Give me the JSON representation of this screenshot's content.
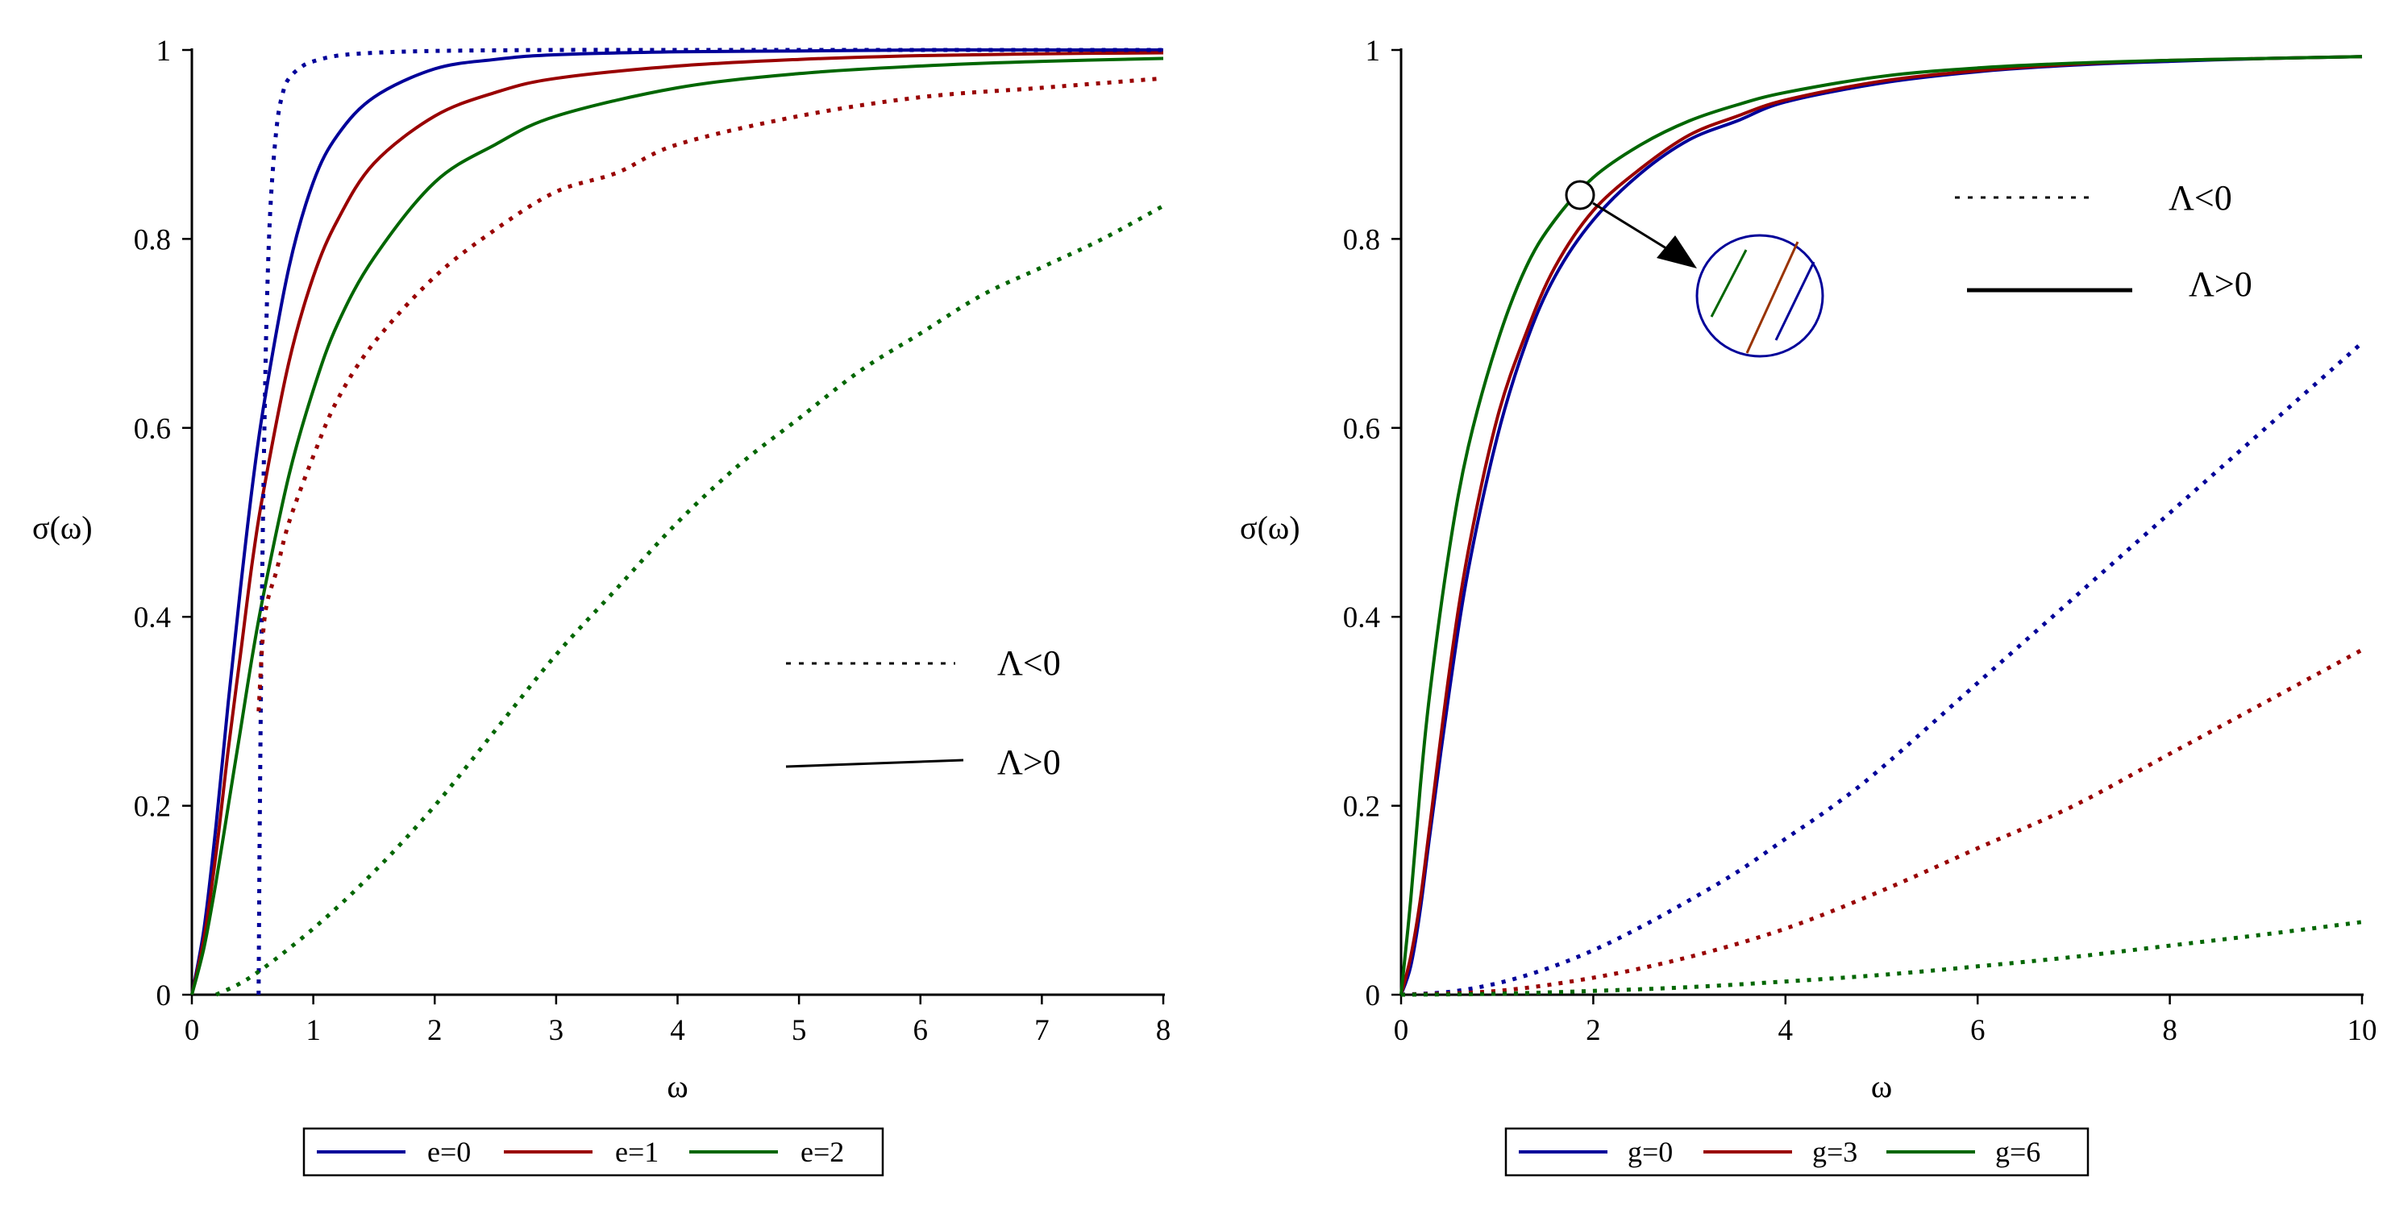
{
  "chart_data": [
    {
      "type": "line",
      "xlabel": "ω",
      "ylabel": "σ(ω)",
      "xlim": [
        0,
        8
      ],
      "ylim": [
        0,
        1
      ],
      "xticks": [
        "0",
        "1",
        "2",
        "3",
        "4",
        "5",
        "6",
        "7",
        "8"
      ],
      "yticks": [
        "0",
        "0.2",
        "0.4",
        "0.6",
        "0.8",
        "1"
      ],
      "style_annotation": [
        {
          "label": "Λ<0",
          "style": "dotted"
        },
        {
          "label": "Λ>0",
          "style": "solid"
        }
      ],
      "legend": [
        {
          "label": "e=0",
          "color": "#000099"
        },
        {
          "label": "e=1",
          "color": "#990000"
        },
        {
          "label": "e=2",
          "color": "#006600"
        }
      ],
      "series": [
        {
          "name": "e=0 (Λ>0)",
          "color": "#000099",
          "style": "solid",
          "x": [
            0,
            0.1,
            0.2,
            0.3,
            0.4,
            0.5,
            0.6,
            0.8,
            1.0,
            1.2,
            1.5,
            2.0,
            2.5,
            3.0,
            4.0,
            5.0,
            6.0,
            7.0,
            8.0
          ],
          "y": [
            0,
            0.07,
            0.18,
            0.31,
            0.43,
            0.54,
            0.63,
            0.77,
            0.86,
            0.91,
            0.95,
            0.98,
            0.99,
            0.995,
            0.998,
            0.999,
            1.0,
            1.0,
            1.0
          ]
        },
        {
          "name": "e=1 (Λ>0)",
          "color": "#990000",
          "style": "solid",
          "x": [
            0,
            0.1,
            0.2,
            0.3,
            0.4,
            0.5,
            0.6,
            0.8,
            1.0,
            1.2,
            1.5,
            2.0,
            2.5,
            3.0,
            4.0,
            5.0,
            6.0,
            7.0,
            8.0
          ],
          "y": [
            0,
            0.06,
            0.15,
            0.26,
            0.36,
            0.46,
            0.54,
            0.67,
            0.76,
            0.82,
            0.88,
            0.93,
            0.955,
            0.97,
            0.983,
            0.99,
            0.994,
            0.996,
            0.997
          ]
        },
        {
          "name": "e=2 (Λ>0)",
          "color": "#006600",
          "style": "solid",
          "x": [
            0,
            0.1,
            0.2,
            0.3,
            0.4,
            0.5,
            0.6,
            0.8,
            1.0,
            1.2,
            1.5,
            2.0,
            2.5,
            3.0,
            4.0,
            5.0,
            6.0,
            7.0,
            8.0
          ],
          "y": [
            0,
            0.05,
            0.12,
            0.2,
            0.28,
            0.36,
            0.43,
            0.55,
            0.64,
            0.71,
            0.78,
            0.86,
            0.9,
            0.93,
            0.96,
            0.975,
            0.983,
            0.988,
            0.991
          ]
        },
        {
          "name": "e=0 (Λ<0)",
          "color": "#000099",
          "style": "dotted",
          "x": [
            0.55,
            0.56,
            0.58,
            0.6,
            0.62,
            0.65,
            0.7,
            0.75,
            0.8,
            0.9,
            1.0,
            1.2,
            1.5,
            2.0,
            3.0,
            4.0,
            6.0,
            8.0
          ],
          "y": [
            0,
            0.2,
            0.45,
            0.62,
            0.74,
            0.84,
            0.92,
            0.955,
            0.97,
            0.982,
            0.988,
            0.994,
            0.997,
            0.999,
            1.0,
            1.0,
            1.0,
            1.0
          ]
        },
        {
          "name": "e=1 (Λ<0)",
          "color": "#990000",
          "style": "dotted",
          "x": [
            0.55,
            0.6,
            0.7,
            0.8,
            1.0,
            1.2,
            1.5,
            2.0,
            2.5,
            3.0,
            3.5,
            4.0,
            5.0,
            6.0,
            7.0,
            8.0
          ],
          "y": [
            0.3,
            0.4,
            0.45,
            0.5,
            0.57,
            0.63,
            0.69,
            0.76,
            0.81,
            0.85,
            0.87,
            0.9,
            0.93,
            0.95,
            0.96,
            0.97
          ]
        },
        {
          "name": "e=2 (Λ<0)",
          "color": "#006600",
          "style": "dotted",
          "x": [
            0.2,
            0.5,
            1.0,
            1.5,
            2.0,
            2.5,
            3.0,
            3.5,
            4.0,
            4.5,
            5.0,
            5.5,
            6.0,
            6.5,
            7.0,
            7.5,
            8.0
          ],
          "y": [
            0.0,
            0.02,
            0.07,
            0.13,
            0.2,
            0.28,
            0.36,
            0.43,
            0.5,
            0.56,
            0.61,
            0.66,
            0.7,
            0.74,
            0.77,
            0.8,
            0.835
          ]
        }
      ]
    },
    {
      "type": "line",
      "xlabel": "ω",
      "ylabel": "σ(ω)",
      "xlim": [
        0,
        10
      ],
      "ylim": [
        0,
        1
      ],
      "xticks": [
        "0",
        "2",
        "4",
        "6",
        "8",
        "10"
      ],
      "yticks": [
        "0",
        "0.2",
        "0.4",
        "0.6",
        "0.8",
        "1"
      ],
      "style_annotation": [
        {
          "label": "Λ<0",
          "style": "dotted"
        },
        {
          "label": "Λ>0",
          "style": "solid"
        }
      ],
      "legend": [
        {
          "label": "g=0",
          "color": "#000099"
        },
        {
          "label": "g=3",
          "color": "#990000"
        },
        {
          "label": "g=6",
          "color": "#006600"
        }
      ],
      "series": [
        {
          "name": "g=0 (Λ>0)",
          "color": "#000099",
          "style": "solid",
          "x": [
            0,
            0.1,
            0.2,
            0.3,
            0.5,
            0.7,
            1.0,
            1.3,
            1.6,
            2.0,
            2.5,
            3.0,
            3.5,
            4.0,
            5.0,
            6.0,
            7.0,
            8.0,
            9.0,
            10.0
          ],
          "y": [
            0,
            0.03,
            0.09,
            0.17,
            0.32,
            0.45,
            0.59,
            0.69,
            0.76,
            0.82,
            0.87,
            0.905,
            0.925,
            0.945,
            0.965,
            0.977,
            0.984,
            0.988,
            0.991,
            0.993
          ]
        },
        {
          "name": "g=3 (Λ>0)",
          "color": "#990000",
          "style": "solid",
          "x": [
            0,
            0.1,
            0.2,
            0.3,
            0.5,
            0.7,
            1.0,
            1.3,
            1.6,
            2.0,
            2.5,
            3.0,
            3.5,
            4.0,
            5.0,
            6.0,
            7.0,
            8.0,
            9.0,
            10.0
          ],
          "y": [
            0,
            0.04,
            0.1,
            0.18,
            0.34,
            0.47,
            0.61,
            0.7,
            0.77,
            0.83,
            0.875,
            0.91,
            0.93,
            0.947,
            0.967,
            0.978,
            0.985,
            0.989,
            0.991,
            0.993
          ]
        },
        {
          "name": "g=6 (Λ>0)",
          "color": "#006600",
          "style": "solid",
          "x": [
            0,
            0.1,
            0.2,
            0.3,
            0.5,
            0.7,
            1.0,
            1.3,
            1.6,
            2.0,
            2.5,
            3.0,
            3.5,
            4.0,
            5.0,
            6.0,
            7.0,
            8.0,
            9.0,
            10.0
          ],
          "y": [
            0,
            0.1,
            0.22,
            0.32,
            0.47,
            0.58,
            0.69,
            0.77,
            0.82,
            0.865,
            0.9,
            0.925,
            0.942,
            0.955,
            0.972,
            0.981,
            0.986,
            0.989,
            0.991,
            0.993
          ]
        },
        {
          "name": "g=0 (Λ<0)",
          "color": "#000099",
          "style": "dotted",
          "x": [
            0,
            0.5,
            1.0,
            1.5,
            2.0,
            2.5,
            3.0,
            3.5,
            4.0,
            4.5,
            5.0,
            6.0,
            7.0,
            8.0,
            9.0,
            10.0
          ],
          "y": [
            0,
            0.003,
            0.012,
            0.027,
            0.047,
            0.072,
            0.1,
            0.13,
            0.165,
            0.2,
            0.24,
            0.33,
            0.42,
            0.51,
            0.6,
            0.69
          ]
        },
        {
          "name": "g=3 (Λ<0)",
          "color": "#990000",
          "style": "dotted",
          "x": [
            0,
            1.0,
            2.0,
            3.0,
            4.0,
            5.0,
            6.0,
            7.0,
            8.0,
            9.0,
            10.0
          ],
          "y": [
            0,
            0.004,
            0.018,
            0.04,
            0.07,
            0.11,
            0.155,
            0.2,
            0.255,
            0.31,
            0.365
          ]
        },
        {
          "name": "g=6 (Λ<0)",
          "color": "#006600",
          "style": "dotted",
          "x": [
            0,
            1.0,
            2.0,
            3.0,
            4.0,
            5.0,
            6.0,
            7.0,
            8.0,
            9.0,
            10.0
          ],
          "y": [
            0,
            0.001,
            0.004,
            0.008,
            0.014,
            0.021,
            0.03,
            0.04,
            0.052,
            0.064,
            0.077
          ]
        }
      ]
    }
  ]
}
